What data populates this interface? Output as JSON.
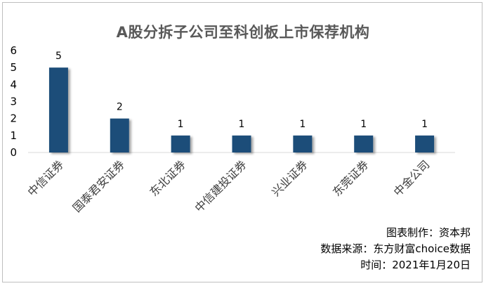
{
  "chart_data": {
    "type": "bar",
    "title": "A股分拆子公司至科创板上市保荐机构",
    "categories": [
      "中信证券",
      "国泰君安证券",
      "东北证券",
      "中信建投证券",
      "兴业证券",
      "东莞证券",
      "中金公司"
    ],
    "values": [
      5,
      2,
      1,
      1,
      1,
      1,
      1
    ],
    "ylim": [
      0,
      6
    ],
    "yticks": [
      0,
      1,
      2,
      3,
      4,
      5,
      6
    ],
    "xlabel": "",
    "ylabel": "",
    "grid": false,
    "bar_color": "#1f4e79"
  },
  "footer": {
    "line1": "图表制作：资本邦",
    "line2": "数据来源：东方财富choice数据",
    "line3": "时间：2021年1月20日"
  }
}
